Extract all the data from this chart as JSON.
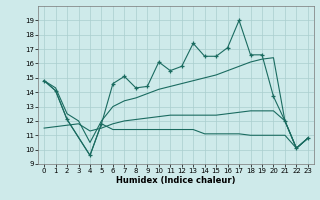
{
  "xlabel": "Humidex (Indice chaleur)",
  "bg_color": "#ceeaea",
  "grid_color": "#aacece",
  "line_color": "#1a6b60",
  "jagged_x": [
    0,
    1,
    2,
    4,
    5,
    6,
    7,
    8,
    9,
    10,
    11,
    12,
    13,
    14,
    15,
    16,
    17,
    18,
    19,
    20,
    21,
    22,
    23
  ],
  "jagged_y": [
    14.8,
    14.1,
    12.1,
    9.6,
    11.8,
    14.6,
    15.1,
    14.3,
    14.4,
    16.1,
    15.5,
    15.8,
    17.4,
    16.5,
    16.5,
    17.1,
    19.0,
    16.6,
    16.6,
    13.7,
    12.0,
    10.1,
    10.8
  ],
  "upper_env_x": [
    0,
    1,
    2,
    3,
    4,
    5,
    6,
    7,
    8,
    9,
    10,
    11,
    12,
    13,
    14,
    15,
    16,
    17,
    18,
    19,
    20,
    21,
    22,
    23
  ],
  "upper_env_y": [
    14.8,
    14.3,
    12.5,
    12.0,
    10.5,
    12.0,
    13.0,
    13.4,
    13.6,
    13.9,
    14.2,
    14.4,
    14.6,
    14.8,
    15.0,
    15.2,
    15.5,
    15.8,
    16.1,
    16.3,
    16.4,
    12.0,
    10.1,
    10.8
  ],
  "lower_env_x": [
    0,
    1,
    2,
    3,
    4,
    5,
    6,
    7,
    8,
    9,
    10,
    11,
    12,
    13,
    14,
    15,
    16,
    17,
    18,
    19,
    20,
    21,
    22,
    23
  ],
  "lower_env_y": [
    11.5,
    11.6,
    11.7,
    11.8,
    11.3,
    11.5,
    11.8,
    12.0,
    12.1,
    12.2,
    12.3,
    12.4,
    12.4,
    12.4,
    12.4,
    12.4,
    12.5,
    12.6,
    12.7,
    12.7,
    12.7,
    12.0,
    10.1,
    10.8
  ],
  "flat_x": [
    0,
    1,
    2,
    4,
    5,
    6,
    7,
    8,
    9,
    10,
    11,
    12,
    13,
    14,
    15,
    16,
    17,
    18,
    19,
    20,
    21,
    22,
    23
  ],
  "flat_y": [
    14.8,
    14.1,
    12.1,
    9.6,
    11.8,
    11.4,
    11.4,
    11.4,
    11.4,
    11.4,
    11.4,
    11.4,
    11.4,
    11.1,
    11.1,
    11.1,
    11.1,
    11.0,
    11.0,
    11.0,
    11.0,
    10.1,
    10.8
  ],
  "ylim": [
    9,
    20
  ],
  "xlim": [
    -0.5,
    23.5
  ],
  "yticks": [
    9,
    10,
    11,
    12,
    13,
    14,
    15,
    16,
    17,
    18,
    19
  ],
  "xticks": [
    0,
    1,
    2,
    3,
    4,
    5,
    6,
    7,
    8,
    9,
    10,
    11,
    12,
    13,
    14,
    15,
    16,
    17,
    18,
    19,
    20,
    21,
    22,
    23
  ]
}
